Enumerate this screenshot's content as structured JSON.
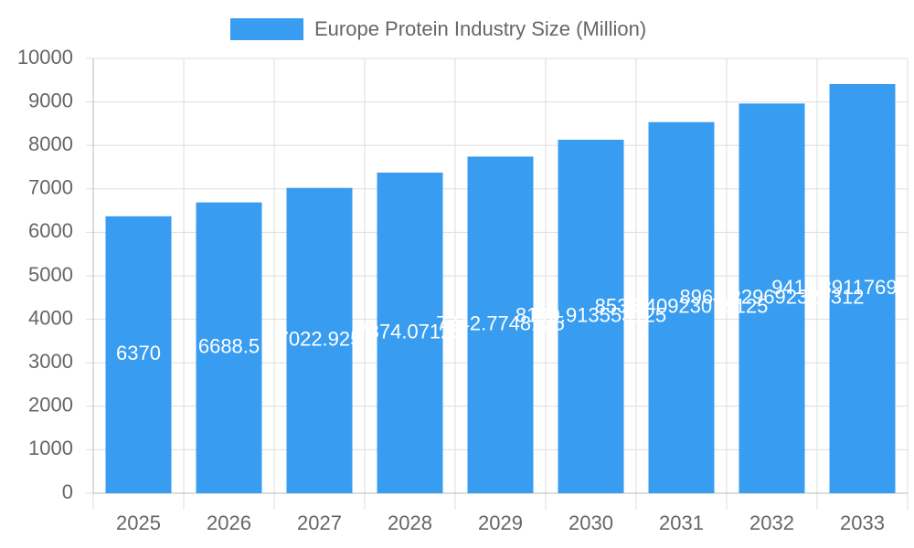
{
  "chart_data": {
    "type": "bar",
    "categories": [
      "2025",
      "2026",
      "2027",
      "2028",
      "2029",
      "2030",
      "2031",
      "2032",
      "2033"
    ],
    "series": [
      {
        "name": "Europe Protein Industry Size (Million)",
        "color": "#389cf0",
        "values": [
          6370,
          6688.5,
          7022.925,
          7374.07125,
          7742.7748125,
          8129.913553125,
          8536.40923078125,
          8963.229692320312,
          9411.391176936328
        ]
      }
    ],
    "ylim": [
      0,
      10000
    ],
    "yticks": [
      0,
      1000,
      2000,
      3000,
      4000,
      5000,
      6000,
      7000,
      8000,
      9000,
      10000
    ],
    "grid": true,
    "legend": "top"
  }
}
